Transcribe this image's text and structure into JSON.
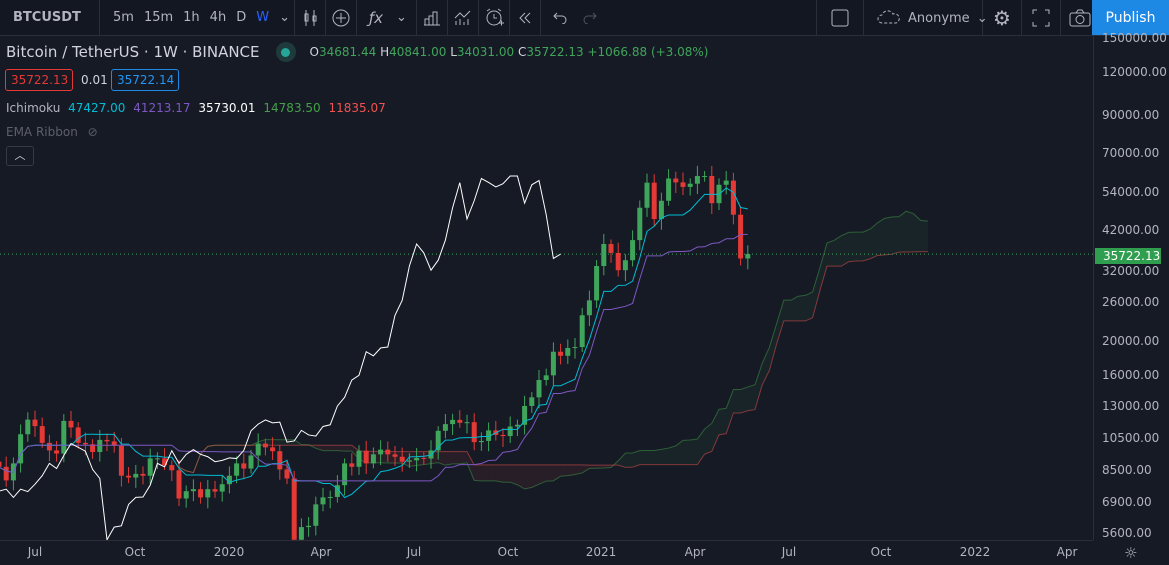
{
  "toolbar": {
    "symbol": "BTCUSDT",
    "intervals": [
      "5m",
      "15m",
      "1h",
      "4h",
      "D",
      "W"
    ],
    "active_interval": "W",
    "user": "Anonyme",
    "publish": "Publish",
    "icons": [
      "candles-icon",
      "add-compare-icon",
      "indicators-icon",
      "templates-icon",
      "compare-bars-icon",
      "alert-icon",
      "replay-icon",
      "undo-icon",
      "redo-icon",
      "layout-square-icon",
      "cloud-icon",
      "settings-icon",
      "fullscreen-icon",
      "camera-icon"
    ]
  },
  "legend": {
    "title": "Bitcoin / TetherUS · 1W · BINANCE",
    "o_label": "O",
    "o": "34681.44",
    "h_label": "H",
    "h": "40841.00",
    "l_label": "L",
    "l": "34031.00",
    "c_label": "C",
    "c": "35722.13",
    "change": "+1066.88 (+3.08%)",
    "sell": "35722.13",
    "spread": "0.01",
    "buy": "35722.14"
  },
  "ichimoku": {
    "name": "Ichimoku",
    "values": [
      "47427.00",
      "41213.17",
      "35730.01",
      "14783.50",
      "11835.07"
    ],
    "colors": [
      "#00bcd4",
      "#7e57c2",
      "#ffffff",
      "#43a047",
      "#ef5350"
    ]
  },
  "ema": {
    "name": "EMA Ribbon"
  },
  "price_axis": {
    "ticks": [
      "150000.00",
      "120000.00",
      "90000.00",
      "70000.00",
      "54000.00",
      "42000.00",
      "32000.00",
      "26000.00",
      "20000.00",
      "16000.00",
      "13000.00",
      "10500.00",
      "8500.00",
      "6900.00",
      "5600.00"
    ],
    "current": "35722.13"
  },
  "time_axis": {
    "ticks": [
      "Jul",
      "Oct",
      "2020",
      "Apr",
      "Jul",
      "Oct",
      "2021",
      "Apr",
      "Jul",
      "Oct",
      "2022",
      "Apr"
    ]
  },
  "colors": {
    "up": "#3fa55b",
    "down": "#e53935",
    "background": "#161a25",
    "accent": "#1e88e5"
  }
}
